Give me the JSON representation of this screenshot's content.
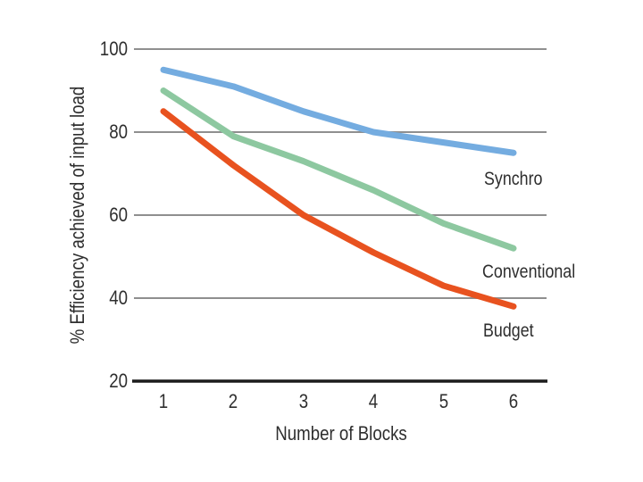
{
  "figure": {
    "background_color": "#ffffff",
    "text_color": "#2e2e2e",
    "grid_color": "#8f8f8f",
    "axis_color": "#1c1c1c"
  },
  "chart_data": {
    "type": "line",
    "title": "",
    "xlabel": "Number of Blocks",
    "ylabel": "% Efficiency achieved of input load",
    "x": [
      1,
      2,
      3,
      4,
      5,
      6
    ],
    "xticks": [
      "1",
      "2",
      "3",
      "4",
      "5",
      "6"
    ],
    "yticks": [
      100,
      80,
      60,
      40,
      20
    ],
    "ylim": [
      20,
      100
    ],
    "grid_values": [
      100,
      80,
      60,
      40
    ],
    "grid_on": true,
    "legend_position": "inline-right-of-lines",
    "line_width": 7,
    "series": [
      {
        "name": "Synchro",
        "label": "Synchro",
        "color": "#74ace0",
        "values": [
          95,
          91,
          85,
          80,
          77.5,
          75
        ]
      },
      {
        "name": "Conventional",
        "label": "Conventional",
        "color": "#8dc8a0",
        "values": [
          90,
          79,
          73,
          66,
          58,
          52
        ]
      },
      {
        "name": "Budget",
        "label": "Budget",
        "color": "#e8521f",
        "values": [
          85,
          72,
          60,
          51,
          43,
          38
        ]
      }
    ]
  }
}
